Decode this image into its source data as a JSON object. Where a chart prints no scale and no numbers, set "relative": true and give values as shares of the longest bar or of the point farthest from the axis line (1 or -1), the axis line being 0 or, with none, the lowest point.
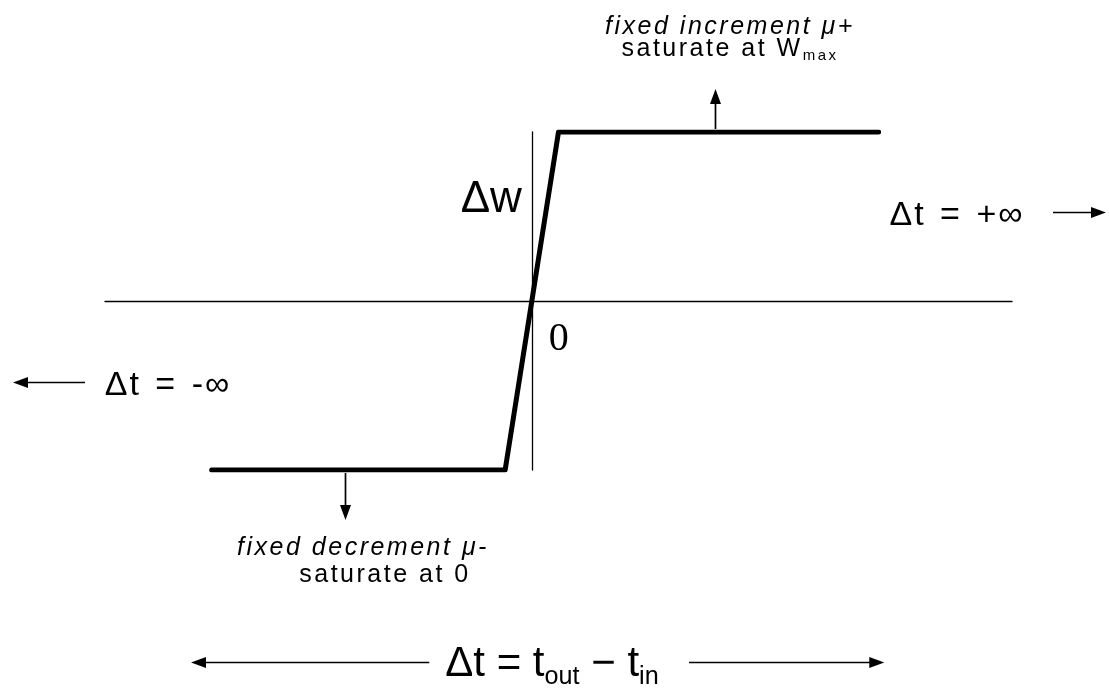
{
  "chart_data": {
    "type": "line",
    "relative": true,
    "xlabel": "Δt = t$_{out}$ − t$_{in}$",
    "ylabel": "Δw",
    "categories": [
      null,
      null,
      null,
      null,
      null,
      null,
      null,
      null,
      null,
      null,
      null,
      null,
      null,
      null,
      null,
      null,
      null,
      null,
      null,
      null,
      null,
      null,
      null,
      null,
      null,
      null,
      null,
      null,
      null,
      null,
      null,
      null,
      null,
      null,
      null
    ],
    "values": [
      null,
      null,
      null,
      null,
      -1,
      -1,
      -1,
      -1,
      -1,
      -1,
      -1,
      -1,
      -1,
      -1,
      -1,
      -1,
      0,
      1,
      1,
      1,
      1,
      1,
      1,
      1,
      1,
      1,
      1,
      1,
      1,
      1,
      null,
      null,
      null,
      null,
      null
    ],
    "color": "#000000",
    "marker": "none",
    "line_style": "solid",
    "grid": false,
    "annotations": [
      "fixed increment μ+",
      "saturate at W$_{max}$",
      "fixed decrement μ-",
      "saturate at 0",
      "0",
      "Δt = -∞",
      "Δt = +∞"
    ]
  }
}
